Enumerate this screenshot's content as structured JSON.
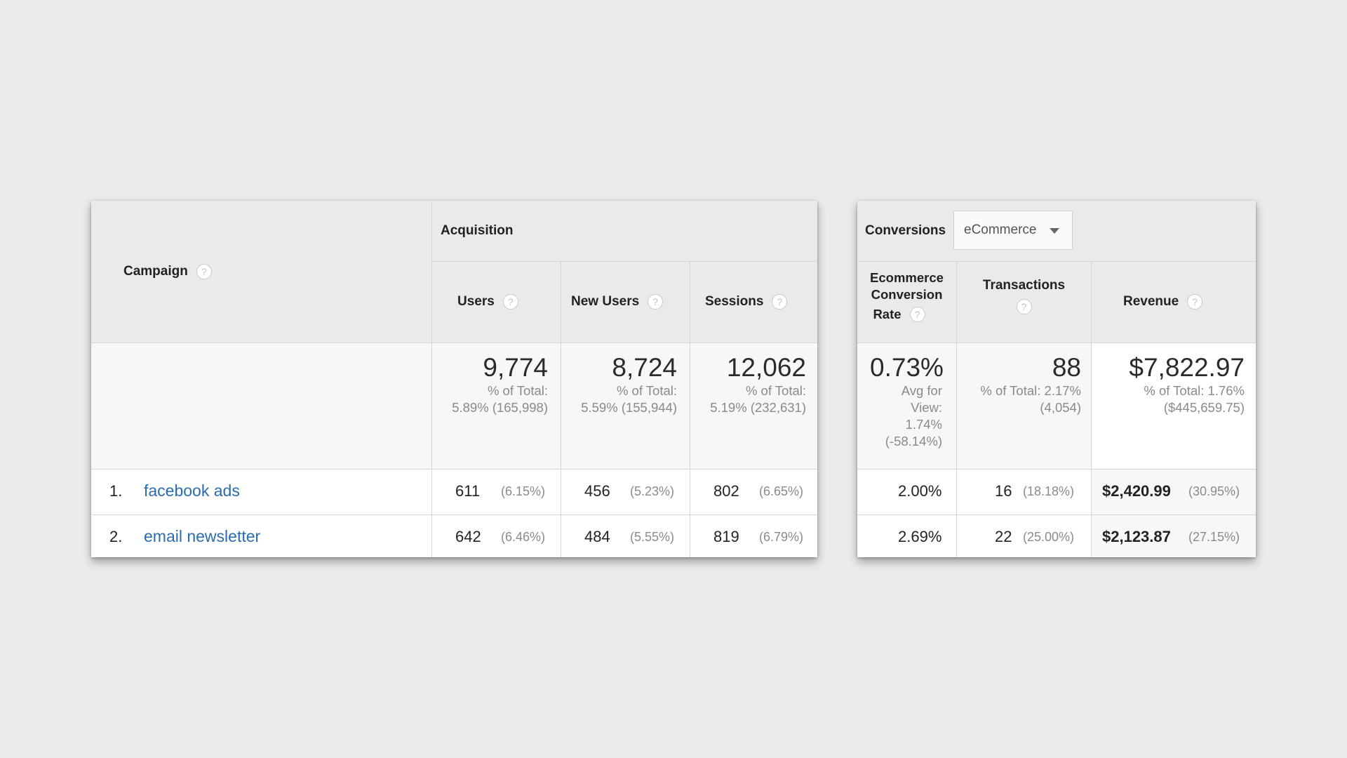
{
  "left_table": {
    "campaign_header": "Campaign",
    "acquisition_header": "Acquisition",
    "columns": [
      {
        "label": "Users",
        "total": "9,774",
        "sub1": "% of Total:",
        "sub2": "5.89% (165,998)"
      },
      {
        "label": "New Users",
        "total": "8,724",
        "sub1": "% of Total:",
        "sub2": "5.59% (155,944)"
      },
      {
        "label": "Sessions",
        "total": "12,062",
        "sub1": "% of Total:",
        "sub2": "5.19% (232,631)"
      }
    ],
    "rows": [
      {
        "rank": "1.",
        "name": "facebook ads",
        "cells": [
          {
            "v": "611",
            "p": "(6.15%)"
          },
          {
            "v": "456",
            "p": "(5.23%)"
          },
          {
            "v": "802",
            "p": "(6.65%)"
          }
        ]
      },
      {
        "rank": "2.",
        "name": "email newsletter",
        "cells": [
          {
            "v": "642",
            "p": "(6.46%)"
          },
          {
            "v": "484",
            "p": "(5.55%)"
          },
          {
            "v": "819",
            "p": "(6.79%)"
          }
        ]
      }
    ]
  },
  "right_table": {
    "conversions_label": "Conversions",
    "dropdown_value": "eCommerce",
    "col_ecr": {
      "line1": "Ecommerce",
      "line2": "Conversion",
      "line3": "Rate",
      "total": "0.73%",
      "sub": [
        "Avg for",
        "View:",
        "1.74%",
        "(-58.14%)"
      ]
    },
    "col_tx": {
      "label": "Transactions",
      "total": "88",
      "sub1": "% of Total: 2.17%",
      "sub2": "(4,054)"
    },
    "col_rev": {
      "label": "Revenue",
      "total": "$7,822.97",
      "sub1": "% of Total: 1.76%",
      "sub2": "($445,659.75)"
    },
    "rows": [
      {
        "ecr": "2.00%",
        "tx": "16",
        "tx_pct": "(18.18%)",
        "rev": "$2,420.99",
        "rev_pct": "(30.95%)"
      },
      {
        "ecr": "2.69%",
        "tx": "22",
        "tx_pct": "(25.00%)",
        "rev": "$2,123.87",
        "rev_pct": "(27.15%)"
      }
    ]
  },
  "help_icon_glyph": "?"
}
